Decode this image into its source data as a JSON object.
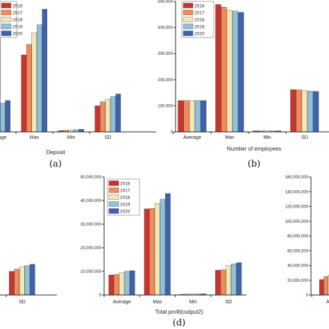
{
  "palette": [
    "#c8352b",
    "#f38a5c",
    "#f3e7b3",
    "#8fc1dc",
    "#3e63a8"
  ],
  "chart_data": [
    {
      "id": "a",
      "type": "bar",
      "panel_label": "(a)",
      "xlabel": "Deposit",
      "categories": [
        "Average",
        "Max",
        "Min",
        "SD"
      ],
      "legend": [
        "2016",
        "2017",
        "2018",
        "2019",
        "2020"
      ],
      "ylim": [
        0,
        100
      ],
      "y_ticks": [],
      "series": [
        {
          "name": "2016",
          "values": [
            18,
            59,
            1,
            20
          ]
        },
        {
          "name": "2017",
          "values": [
            19,
            67,
            1.3,
            23
          ]
        },
        {
          "name": "2018",
          "values": [
            20,
            76,
            1.5,
            25
          ]
        },
        {
          "name": "2019",
          "values": [
            22,
            82,
            1.7,
            27
          ]
        },
        {
          "name": "2020",
          "values": [
            24,
            94,
            2,
            29
          ]
        }
      ]
    },
    {
      "id": "b",
      "type": "bar",
      "panel_label": "(b)",
      "xlabel": "Number of employees",
      "categories": [
        "Average",
        "Max",
        "Min",
        "SD"
      ],
      "legend": [
        "2016",
        "2017",
        "2018",
        "2019",
        "2020"
      ],
      "ylim": [
        0,
        500000
      ],
      "y_ticks": [
        0,
        100000,
        200000,
        300000,
        400000,
        500000
      ],
      "y_tick_labels": [
        "0",
        "100,000",
        "200,000",
        "300,000",
        "400,000",
        "500,000"
      ],
      "series": [
        {
          "name": "2016",
          "values": [
            120000,
            488000,
            4000,
            162000
          ]
        },
        {
          "name": "2017",
          "values": [
            120000,
            478000,
            4000,
            161000
          ]
        },
        {
          "name": "2018",
          "values": [
            120000,
            466000,
            4000,
            158000
          ]
        },
        {
          "name": "2019",
          "values": [
            120000,
            463000,
            4000,
            156000
          ]
        },
        {
          "name": "2020",
          "values": [
            120000,
            458000,
            4000,
            155000
          ]
        }
      ]
    },
    {
      "id": "c",
      "type": "bar",
      "panel_label": "",
      "xlabel": "",
      "categories": [
        "SD"
      ],
      "legend": [],
      "ylim": [
        0,
        50
      ],
      "y_ticks": [],
      "series": [
        {
          "name": "2016",
          "values": [
            10
          ]
        },
        {
          "name": "2017",
          "values": [
            11
          ]
        },
        {
          "name": "2018",
          "values": [
            12
          ]
        },
        {
          "name": "2019",
          "values": [
            12.5
          ]
        },
        {
          "name": "2020",
          "values": [
            13
          ]
        }
      ]
    },
    {
      "id": "d",
      "type": "bar",
      "panel_label": "(d)",
      "xlabel": "Total profit(output2)",
      "categories": [
        "Average",
        "Max",
        "Min",
        "SD"
      ],
      "legend": [
        "2016",
        "2017",
        "2018",
        "2019",
        "2020"
      ],
      "ylim": [
        0,
        50000000
      ],
      "y_ticks": [
        0,
        10000000,
        20000000,
        30000000,
        40000000,
        50000000
      ],
      "y_tick_labels": [
        "0",
        "10,000,000",
        "20,000,000",
        "30,000,000",
        "40,000,000",
        "50,000,000"
      ],
      "series": [
        {
          "name": "2016",
          "values": [
            8500000,
            36500000,
            300000,
            10500000
          ]
        },
        {
          "name": "2017",
          "values": [
            8700000,
            36700000,
            350000,
            10700000
          ]
        },
        {
          "name": "2018",
          "values": [
            9500000,
            38800000,
            400000,
            12500000
          ]
        },
        {
          "name": "2019",
          "values": [
            10100000,
            40600000,
            450000,
            13200000
          ]
        },
        {
          "name": "2020",
          "values": [
            10300000,
            43000000,
            500000,
            13700000
          ]
        }
      ]
    },
    {
      "id": "e",
      "type": "bar",
      "panel_label": "",
      "xlabel": "",
      "categories": [
        "Ave"
      ],
      "legend": [],
      "ylim": [
        0,
        160000000
      ],
      "y_ticks": [
        0,
        20000000,
        40000000,
        60000000,
        80000000,
        100000000,
        120000000,
        140000000,
        160000000
      ],
      "y_tick_labels": [
        "0",
        "20,000,000",
        "40,000,000",
        "60,000,000",
        "80,000,000",
        "100,000,000",
        "120,000,000",
        "140,000,000",
        "160,000,000"
      ],
      "series": [
        {
          "name": "2016",
          "values": [
            21000000
          ]
        },
        {
          "name": "2017",
          "values": [
            25000000
          ]
        },
        {
          "name": "2018",
          "values": [
            27000000
          ]
        },
        {
          "name": "2019",
          "values": [
            28000000
          ]
        },
        {
          "name": "2020",
          "values": [
            29000000
          ]
        }
      ]
    }
  ]
}
